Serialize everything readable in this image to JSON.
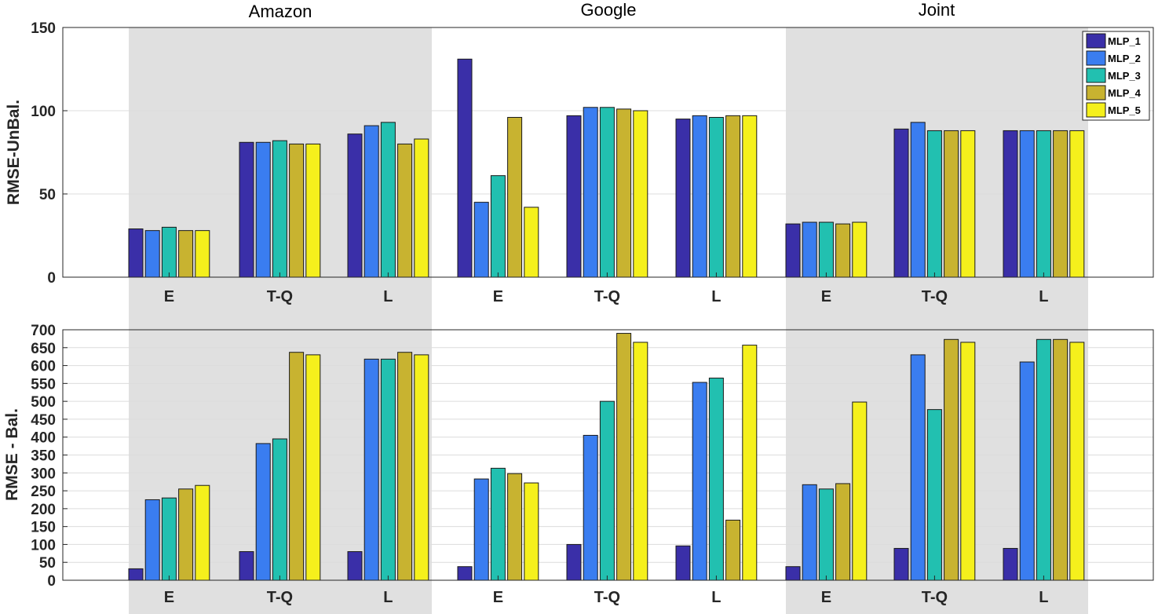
{
  "chart_data": [
    {
      "type": "bar",
      "ylabel": "RMSE-UnBal.",
      "ylim": [
        0,
        150
      ],
      "yticks": [
        0,
        50,
        100,
        150
      ],
      "grid": true,
      "legend_position": "top-right",
      "groups": [
        "Amazon",
        "Google",
        "Joint"
      ],
      "categories": [
        "E",
        "T-Q",
        "L"
      ],
      "series": [
        {
          "name": "MLP_1",
          "values": [
            [
              29,
              81,
              86
            ],
            [
              131,
              97,
              95
            ],
            [
              32,
              89,
              88
            ]
          ]
        },
        {
          "name": "MLP_2",
          "values": [
            [
              28,
              81,
              91
            ],
            [
              45,
              102,
              97
            ],
            [
              33,
              93,
              88
            ]
          ]
        },
        {
          "name": "MLP_3",
          "values": [
            [
              30,
              82,
              93
            ],
            [
              61,
              102,
              96
            ],
            [
              33,
              88,
              88
            ]
          ]
        },
        {
          "name": "MLP_4",
          "values": [
            [
              28,
              80,
              80
            ],
            [
              96,
              101,
              97
            ],
            [
              32,
              88,
              88
            ]
          ]
        },
        {
          "name": "MLP_5",
          "values": [
            [
              28,
              80,
              83
            ],
            [
              42,
              100,
              97
            ],
            [
              33,
              88,
              88
            ]
          ]
        }
      ]
    },
    {
      "type": "bar",
      "ylabel": "RMSE - Bal.",
      "ylim": [
        0,
        700
      ],
      "yticks": [
        0,
        50,
        100,
        150,
        200,
        250,
        300,
        350,
        400,
        450,
        500,
        550,
        600,
        650,
        700
      ],
      "grid": true,
      "groups": [
        "Amazon",
        "Google",
        "Joint"
      ],
      "categories": [
        "E",
        "T-Q",
        "L"
      ],
      "series": [
        {
          "name": "MLP_1",
          "values": [
            [
              32,
              80,
              80
            ],
            [
              38,
              100,
              96
            ],
            [
              38,
              89,
              89
            ]
          ]
        },
        {
          "name": "MLP_2",
          "values": [
            [
              225,
              382,
              618
            ],
            [
              283,
              405,
              553
            ],
            [
              267,
              630,
              610
            ]
          ]
        },
        {
          "name": "MLP_3",
          "values": [
            [
              230,
              395,
              618
            ],
            [
              313,
              500,
              565
            ],
            [
              255,
              477,
              673
            ]
          ]
        },
        {
          "name": "MLP_4",
          "values": [
            [
              255,
              637,
              637
            ],
            [
              298,
              690,
              168
            ],
            [
              270,
              673,
              673
            ]
          ]
        },
        {
          "name": "MLP_5",
          "values": [
            [
              265,
              630,
              630
            ],
            [
              272,
              665,
              657
            ],
            [
              498,
              665,
              665
            ]
          ]
        }
      ]
    }
  ],
  "colors": {
    "MLP_1": "#3a2fa8",
    "MLP_2": "#3a7df0",
    "MLP_3": "#22c0b0",
    "MLP_4": "#c8b330",
    "MLP_5": "#f5f01c",
    "shade": "#e0e0e0",
    "grid": "#dcdcdc",
    "axis": "#262626"
  }
}
